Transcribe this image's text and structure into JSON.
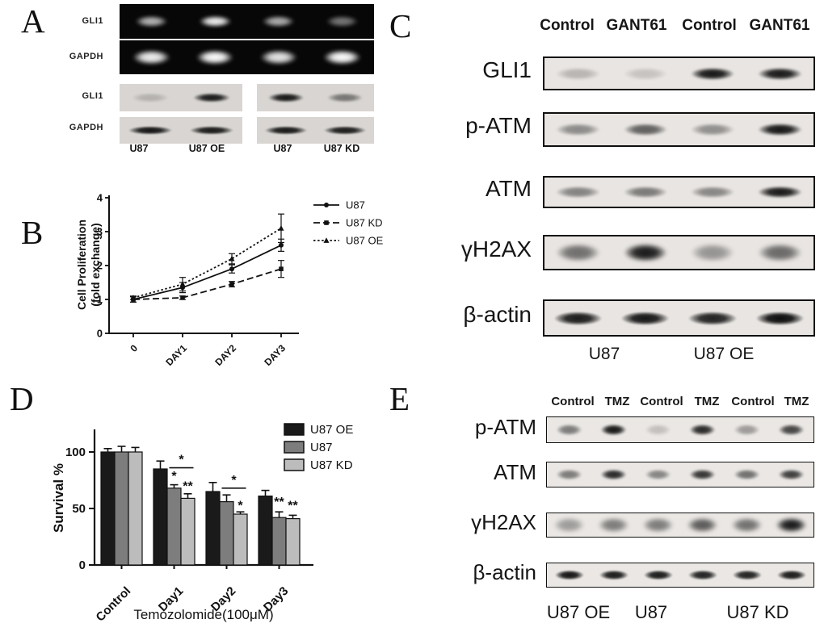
{
  "panels": {
    "a": {
      "label": "A",
      "gels": [
        {
          "protein": "GLI1",
          "band_intensities": [
            0.7,
            0.95,
            0.68,
            0.45
          ]
        },
        {
          "protein": "GAPDH",
          "band_intensities": [
            0.95,
            1.0,
            0.9,
            1.0
          ]
        }
      ],
      "westerns": [
        {
          "protein": "GLI1",
          "strips": [
            [
              0.18,
              0.93
            ],
            [
              0.95,
              0.48
            ]
          ]
        },
        {
          "protein": "GAPDH",
          "strips": [
            [
              0.96,
              0.93
            ],
            [
              0.94,
              0.92
            ]
          ]
        }
      ],
      "lane_labels": [
        "U87",
        "U87 OE",
        "U87",
        "U87 KD"
      ]
    },
    "b": {
      "label": "B"
    },
    "c": {
      "label": "C",
      "column_headers": [
        "Control",
        "GANT61",
        "Control",
        "GANT61"
      ],
      "rows": [
        {
          "protein": "GLI1",
          "band_intensities": [
            0.22,
            0.16,
            0.96,
            0.94
          ]
        },
        {
          "protein": "p-ATM",
          "band_intensities": [
            0.42,
            0.62,
            0.4,
            0.96
          ]
        },
        {
          "protein": "ATM",
          "band_intensities": [
            0.46,
            0.5,
            0.44,
            0.95
          ]
        },
        {
          "protein": "γH2AX",
          "band_intensities": [
            0.55,
            0.95,
            0.38,
            0.58
          ]
        },
        {
          "protein": "β-actin",
          "band_intensities": [
            0.93,
            0.96,
            0.9,
            1.0
          ]
        }
      ],
      "group_labels": [
        "U87",
        "U87 OE"
      ]
    },
    "d": {
      "label": "D"
    },
    "e": {
      "label": "E",
      "column_headers": [
        "Control",
        "TMZ",
        "Control",
        "TMZ",
        "Control",
        "TMZ"
      ],
      "rows": [
        {
          "protein": "p-ATM",
          "band_intensities": [
            0.5,
            0.96,
            0.18,
            0.88,
            0.35,
            0.75
          ]
        },
        {
          "protein": "ATM",
          "band_intensities": [
            0.5,
            0.88,
            0.45,
            0.82,
            0.55,
            0.78
          ]
        },
        {
          "protein": "γH2AX",
          "band_intensities": [
            0.35,
            0.5,
            0.5,
            0.65,
            0.55,
            0.96
          ]
        },
        {
          "protein": "β-actin",
          "band_intensities": [
            0.96,
            0.93,
            0.93,
            0.9,
            0.9,
            0.93
          ]
        }
      ],
      "group_labels": [
        "U87 OE",
        "U87",
        "U87 KD"
      ]
    }
  },
  "chart_data": [
    {
      "id": "panel_b_proliferation",
      "type": "line",
      "title": "",
      "ylabel_line1": "Cell Proliferation",
      "ylabel_line2": "(fold exchange)",
      "xlabel": "",
      "categories": [
        "0",
        "DAY1",
        "DAY2",
        "DAY3"
      ],
      "ylim": [
        0,
        4
      ],
      "yticks": [
        0,
        1,
        2,
        3,
        4
      ],
      "grid": false,
      "legend_position": "top-right",
      "series": [
        {
          "name": "U87",
          "style": "solid",
          "marker": "circle",
          "color": "#1a1a1a",
          "values": [
            1.0,
            1.35,
            1.9,
            2.6
          ],
          "errors": [
            0.08,
            0.15,
            0.12,
            0.18
          ]
        },
        {
          "name": "U87 KD",
          "style": "dashed",
          "marker": "square",
          "color": "#1a1a1a",
          "values": [
            1.0,
            1.05,
            1.45,
            1.9
          ],
          "errors": [
            0.08,
            0.05,
            0.08,
            0.25
          ]
        },
        {
          "name": "U87 OE",
          "style": "dotted",
          "marker": "triangle",
          "color": "#1a1a1a",
          "values": [
            1.05,
            1.45,
            2.2,
            3.1
          ],
          "errors": [
            0.05,
            0.2,
            0.15,
            0.42
          ]
        }
      ]
    },
    {
      "id": "panel_d_survival",
      "type": "bar",
      "title": "",
      "ylabel": "Survival %",
      "xlabel": "Temozolomide(100μM)",
      "categories": [
        "Control",
        "Day1",
        "Day2",
        "Day3"
      ],
      "ylim": [
        0,
        120
      ],
      "yticks": [
        0,
        50,
        100
      ],
      "grid": false,
      "legend_position": "top-right",
      "series": [
        {
          "name": "U87 OE",
          "color": "#1a1a1a",
          "values": [
            100,
            85,
            65,
            61
          ],
          "errors": [
            3,
            7,
            8,
            5
          ]
        },
        {
          "name": "U87",
          "color": "#7d7d7d",
          "values": [
            100,
            68,
            56,
            42
          ],
          "errors": [
            5,
            3,
            6,
            5
          ]
        },
        {
          "name": "U87 KD",
          "color": "#bcbcbc",
          "values": [
            100,
            59,
            45,
            41
          ],
          "errors": [
            4,
            4,
            2,
            3
          ]
        }
      ],
      "annotations": [
        {
          "type": "bracket",
          "category": "Day1",
          "category_index": 1,
          "series_from": 1,
          "series_to": 2,
          "y": 86,
          "text": "*"
        },
        {
          "type": "star",
          "category": "Day1",
          "category_index": 1,
          "series": 1,
          "y": 75,
          "text": "*"
        },
        {
          "type": "star",
          "category": "Day1",
          "category_index": 1,
          "series": 2,
          "y": 66,
          "text": "**"
        },
        {
          "type": "bracket",
          "category": "Day2",
          "category_index": 2,
          "series_from": 1,
          "series_to": 2,
          "y": 68,
          "text": "*"
        },
        {
          "type": "star",
          "category": "Day2",
          "category_index": 2,
          "series": 2,
          "y": 49,
          "text": "*"
        },
        {
          "type": "star",
          "category": "Day3",
          "category_index": 3,
          "series": 1,
          "y": 52,
          "text": "**"
        },
        {
          "type": "star",
          "category": "Day3",
          "category_index": 3,
          "series": 2,
          "y": 49,
          "text": "**"
        }
      ]
    }
  ]
}
